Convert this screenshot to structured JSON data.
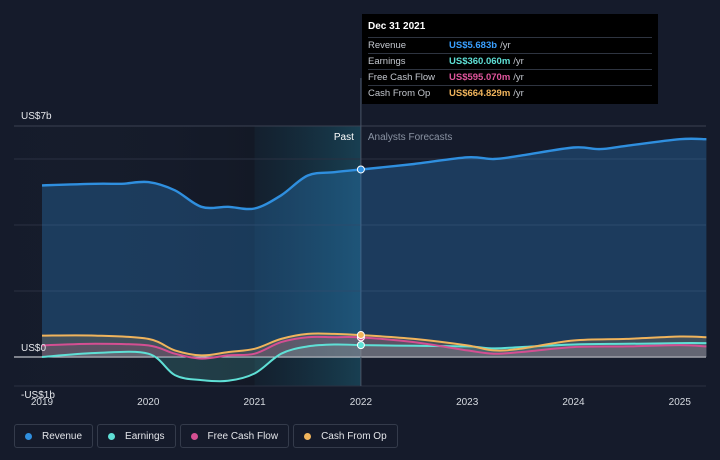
{
  "chart_data": {
    "type": "area",
    "currency_axis": {
      "top_label": "US$7b",
      "zero_label": "US$0",
      "bottom_label": "-US$1b"
    },
    "ylim": [
      -1,
      7
    ],
    "xlim": [
      2019,
      2025.25
    ],
    "x_ticks": [
      "2019",
      "2020",
      "2021",
      "2022",
      "2023",
      "2024",
      "2025"
    ],
    "past_label": "Past",
    "forecast_label": "Analysts Forecasts",
    "divider_x": 2022,
    "highlight_range": [
      2021,
      2022
    ],
    "series": [
      {
        "name": "Revenue",
        "color": "#2f8fdf",
        "x": [
          2019,
          2019.5,
          2019.75,
          2020,
          2020.25,
          2020.5,
          2020.75,
          2021,
          2021.25,
          2021.5,
          2021.75,
          2022,
          2022.5,
          2023,
          2023.25,
          2023.5,
          2024,
          2024.25,
          2024.5,
          2025,
          2025.25
        ],
        "values": [
          5.2,
          5.25,
          5.25,
          5.3,
          5.05,
          4.55,
          4.55,
          4.5,
          4.9,
          5.5,
          5.6,
          5.683,
          5.85,
          6.05,
          6.0,
          6.1,
          6.35,
          6.3,
          6.4,
          6.6,
          6.6
        ]
      },
      {
        "name": "Earnings",
        "color": "#5fe0d6",
        "x": [
          2019,
          2019.5,
          2020,
          2020.25,
          2020.5,
          2020.75,
          2021,
          2021.25,
          2021.5,
          2021.75,
          2022,
          2022.5,
          2023,
          2023.25,
          2023.5,
          2024,
          2024.5,
          2025,
          2025.25
        ],
        "values": [
          0.0,
          0.12,
          0.1,
          -0.55,
          -0.7,
          -0.72,
          -0.5,
          0.1,
          0.32,
          0.38,
          0.36,
          0.34,
          0.32,
          0.26,
          0.3,
          0.38,
          0.4,
          0.42,
          0.42
        ]
      },
      {
        "name": "Free Cash Flow",
        "color": "#d44f92",
        "x": [
          2019,
          2019.5,
          2020,
          2020.25,
          2020.5,
          2020.75,
          2021,
          2021.25,
          2021.5,
          2021.75,
          2022,
          2022.5,
          2023,
          2023.25,
          2023.5,
          2024,
          2024.5,
          2025,
          2025.25
        ],
        "values": [
          0.35,
          0.4,
          0.35,
          0.1,
          -0.05,
          0.05,
          0.1,
          0.45,
          0.6,
          0.6,
          0.595,
          0.45,
          0.2,
          0.1,
          0.15,
          0.3,
          0.32,
          0.36,
          0.32
        ]
      },
      {
        "name": "Cash From Op",
        "color": "#f0b45c",
        "x": [
          2019,
          2019.5,
          2020,
          2020.25,
          2020.5,
          2020.75,
          2021,
          2021.25,
          2021.5,
          2021.75,
          2022,
          2022.5,
          2023,
          2023.25,
          2023.5,
          2024,
          2024.5,
          2025,
          2025.25
        ],
        "values": [
          0.65,
          0.65,
          0.55,
          0.2,
          0.05,
          0.15,
          0.25,
          0.55,
          0.7,
          0.7,
          0.665,
          0.55,
          0.35,
          0.2,
          0.25,
          0.5,
          0.55,
          0.62,
          0.6
        ]
      }
    ]
  },
  "tooltip": {
    "date": "Dec 31 2021",
    "rows": [
      {
        "name": "Revenue",
        "value": "US$5.683b",
        "unit": "/yr",
        "color": "#3aa0ff"
      },
      {
        "name": "Earnings",
        "value": "US$360.060m",
        "unit": "/yr",
        "color": "#5fe0d6"
      },
      {
        "name": "Free Cash Flow",
        "value": "US$595.070m",
        "unit": "/yr",
        "color": "#e0559c"
      },
      {
        "name": "Cash From Op",
        "value": "US$664.829m",
        "unit": "/yr",
        "color": "#f0b45c"
      }
    ]
  },
  "legend": [
    {
      "label": "Revenue",
      "color": "#2f8fdf"
    },
    {
      "label": "Earnings",
      "color": "#5fe0d6"
    },
    {
      "label": "Free Cash Flow",
      "color": "#d44f92"
    },
    {
      "label": "Cash From Op",
      "color": "#f0b45c"
    }
  ]
}
